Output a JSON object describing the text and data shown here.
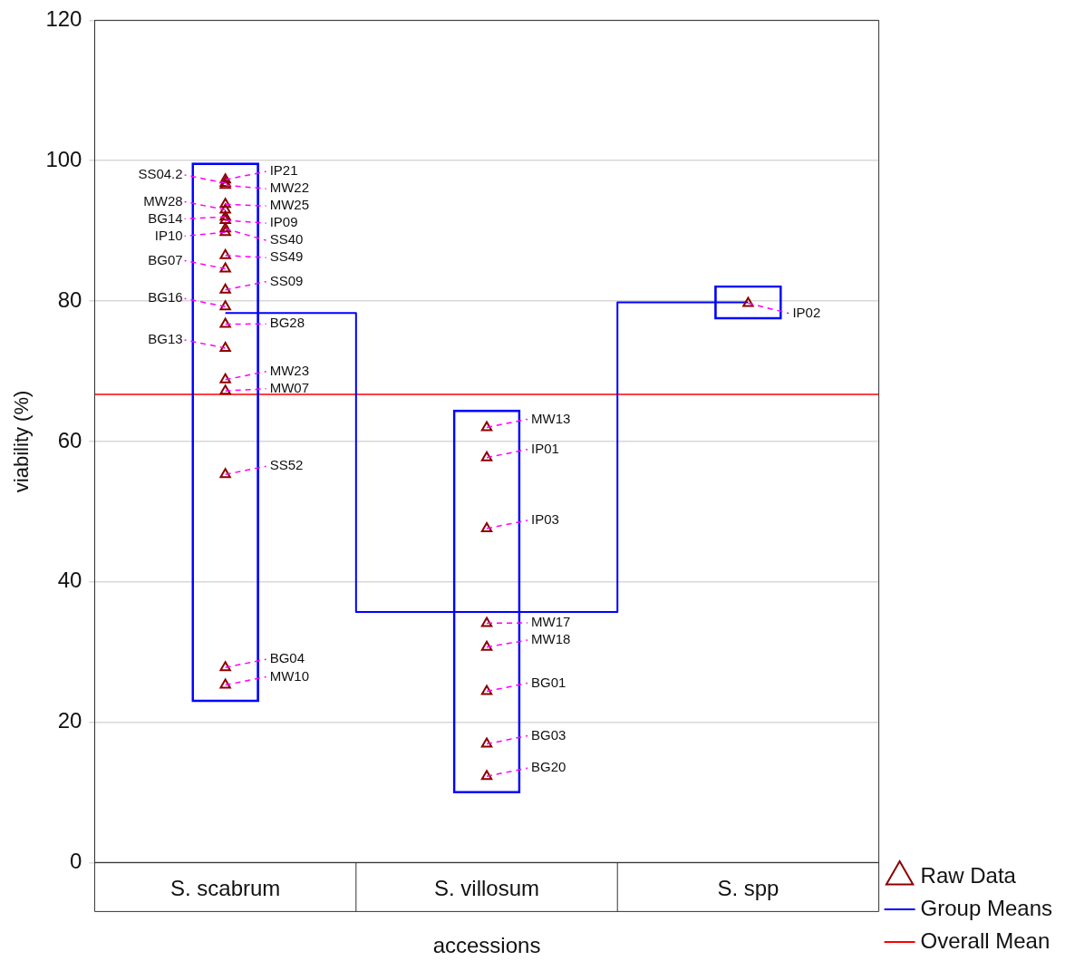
{
  "chart_data": {
    "type": "bar",
    "categories": [
      "S. scabrum",
      "S. villosum",
      "S. spp"
    ],
    "xlabel": "accessions",
    "ylabel": "viability (%)",
    "ylim": [
      0,
      120
    ],
    "yticks": [
      0,
      20,
      40,
      60,
      80,
      100,
      120
    ],
    "grid": "y",
    "legend": "bottom right",
    "series": [
      {
        "color": "#0000ff",
        "base": [
          22.9,
          9.9,
          77.4
        ],
        "values": [
          76.8,
          54.6,
          4.8
        ]
      },
      {
        "type": "step",
        "name": "Group Means",
        "color": "#0000ff",
        "values": [
          78.3,
          35.7,
          79.8
        ]
      },
      {
        "type": "scatter",
        "name": "Raw Data",
        "color": "#8b0000",
        "marker": "triangle",
        "x": [
          "S. scabrum",
          "S. scabrum",
          "S. scabrum",
          "S. scabrum",
          "S. scabrum",
          "S. scabrum",
          "S. scabrum",
          "S. scabrum",
          "S. scabrum",
          "S. scabrum",
          "S. scabrum",
          "S. scabrum",
          "S. scabrum",
          "S. scabrum",
          "S. scabrum",
          "S. scabrum",
          "S. scabrum",
          "S. scabrum",
          "S. scabrum",
          "S. scabrum",
          "S. villosum",
          "S. villosum",
          "S. villosum",
          "S. villosum",
          "S. villosum",
          "S. villosum",
          "S. villosum",
          "S. villosum",
          "S. spp"
        ],
        "values": [
          97.3,
          96.8,
          96.5,
          93.8,
          93.0,
          92.0,
          91.5,
          90.3,
          89.8,
          86.5,
          84.6,
          81.6,
          79.2,
          76.7,
          73.3,
          68.8,
          67.2,
          55.3,
          27.8,
          25.3,
          62.0,
          57.7,
          47.6,
          34.1,
          30.7,
          24.4,
          16.9,
          12.3,
          79.7
        ]
      }
    ],
    "ref_lines": [
      {
        "axis": "y",
        "value": 66.7,
        "label": "Overall Mean",
        "color": "#ff0000"
      }
    ],
    "annotations": [
      {
        "text": "IP21",
        "x": "S. scabrum",
        "y": 97.3
      },
      {
        "text": "SS04.2",
        "x": "S. scabrum",
        "y": 96.8
      },
      {
        "text": "MW22",
        "x": "S. scabrum",
        "y": 96.5
      },
      {
        "text": "MW25",
        "x": "S. scabrum",
        "y": 93.8
      },
      {
        "text": "MW28",
        "x": "S. scabrum",
        "y": 93.0
      },
      {
        "text": "BG14",
        "x": "S. scabrum",
        "y": 92.0
      },
      {
        "text": "IP09",
        "x": "S. scabrum",
        "y": 91.5
      },
      {
        "text": "SS40",
        "x": "S. scabrum",
        "y": 90.3
      },
      {
        "text": "IP10",
        "x": "S. scabrum",
        "y": 89.8
      },
      {
        "text": "SS49",
        "x": "S. scabrum",
        "y": 86.5
      },
      {
        "text": "BG07",
        "x": "S. scabrum",
        "y": 84.6
      },
      {
        "text": "SS09",
        "x": "S. scabrum",
        "y": 81.6
      },
      {
        "text": "BG16",
        "x": "S. scabrum",
        "y": 79.2
      },
      {
        "text": "BG28",
        "x": "S. scabrum",
        "y": 76.7
      },
      {
        "text": "BG13",
        "x": "S. scabrum",
        "y": 73.3
      },
      {
        "text": "MW23",
        "x": "S. scabrum",
        "y": 68.8
      },
      {
        "text": "MW07",
        "x": "S. scabrum",
        "y": 67.2
      },
      {
        "text": "SS52",
        "x": "S. scabrum",
        "y": 55.3
      },
      {
        "text": "BG04",
        "x": "S. scabrum",
        "y": 27.8
      },
      {
        "text": "MW10",
        "x": "S. scabrum",
        "y": 25.3
      },
      {
        "text": "MW13",
        "x": "S. villosum",
        "y": 62.0
      },
      {
        "text": "IP01",
        "x": "S. villosum",
        "y": 57.7
      },
      {
        "text": "IP03",
        "x": "S. villosum",
        "y": 47.6
      },
      {
        "text": "MW17",
        "x": "S. villosum",
        "y": 34.1
      },
      {
        "text": "MW18",
        "x": "S. villosum",
        "y": 30.7
      },
      {
        "text": "BG01",
        "x": "S. villosum",
        "y": 24.4
      },
      {
        "text": "BG03",
        "x": "S. villosum",
        "y": 16.9
      },
      {
        "text": "BG20",
        "x": "S. villosum",
        "y": 12.3
      },
      {
        "text": "IP02",
        "x": "S. spp",
        "y": 79.7
      }
    ]
  }
}
